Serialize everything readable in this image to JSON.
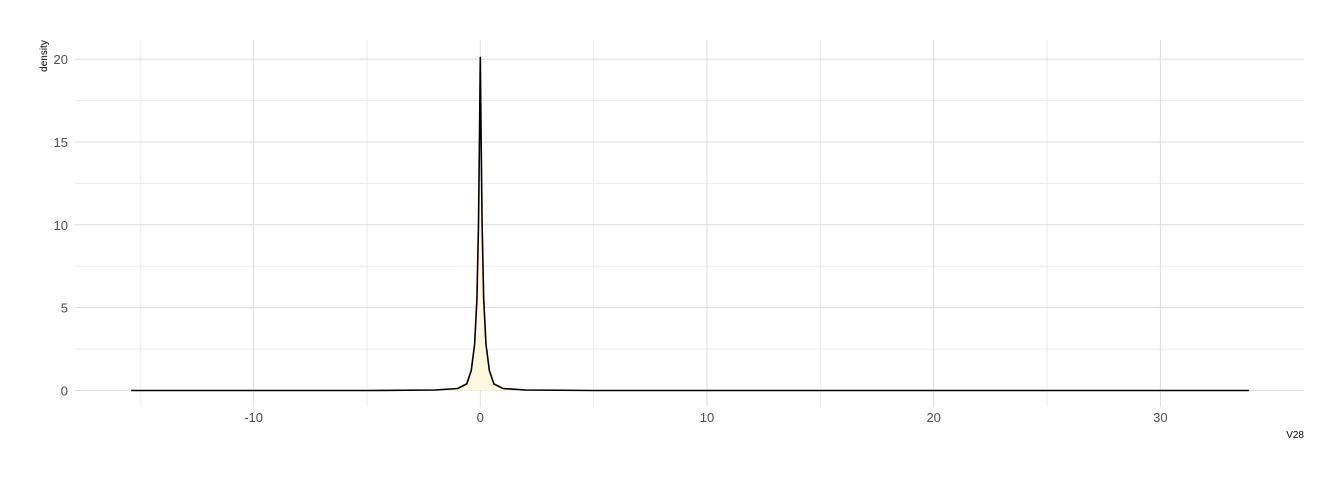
{
  "chart_data": {
    "type": "area",
    "title": "",
    "xlabel": "V28",
    "ylabel": "density",
    "xlim": [
      -15.4,
      33.9
    ],
    "ylim": [
      0,
      20.1
    ],
    "x_ticks": [
      -10,
      0,
      10,
      20,
      30
    ],
    "x_tick_labels": [
      "-10",
      "0",
      "10",
      "20",
      "30"
    ],
    "x_minor_ticks": [
      -15,
      -5,
      5,
      15,
      25
    ],
    "y_ticks": [
      0,
      5,
      10,
      15,
      20
    ],
    "y_tick_labels": [
      "0",
      "5",
      "10",
      "15",
      "20"
    ],
    "y_minor_ticks": [
      2.5,
      7.5,
      12.5,
      17.5
    ],
    "grid": true,
    "legend": "none",
    "fill_color": "#fff8dc",
    "line_color": "#000000",
    "series": [
      {
        "x": [
          -15.4,
          -5,
          -2,
          -1,
          -0.6,
          -0.4,
          -0.25,
          -0.15,
          -0.08,
          -0.03,
          0,
          0.03,
          0.08,
          0.15,
          0.25,
          0.4,
          0.6,
          1,
          2,
          5,
          33.9
        ],
        "y": [
          0,
          0,
          0.03,
          0.12,
          0.4,
          1.2,
          2.8,
          5.5,
          10,
          16,
          20.1,
          16,
          10,
          5.5,
          2.8,
          1.2,
          0.4,
          0.12,
          0.03,
          0,
          0
        ]
      }
    ]
  }
}
